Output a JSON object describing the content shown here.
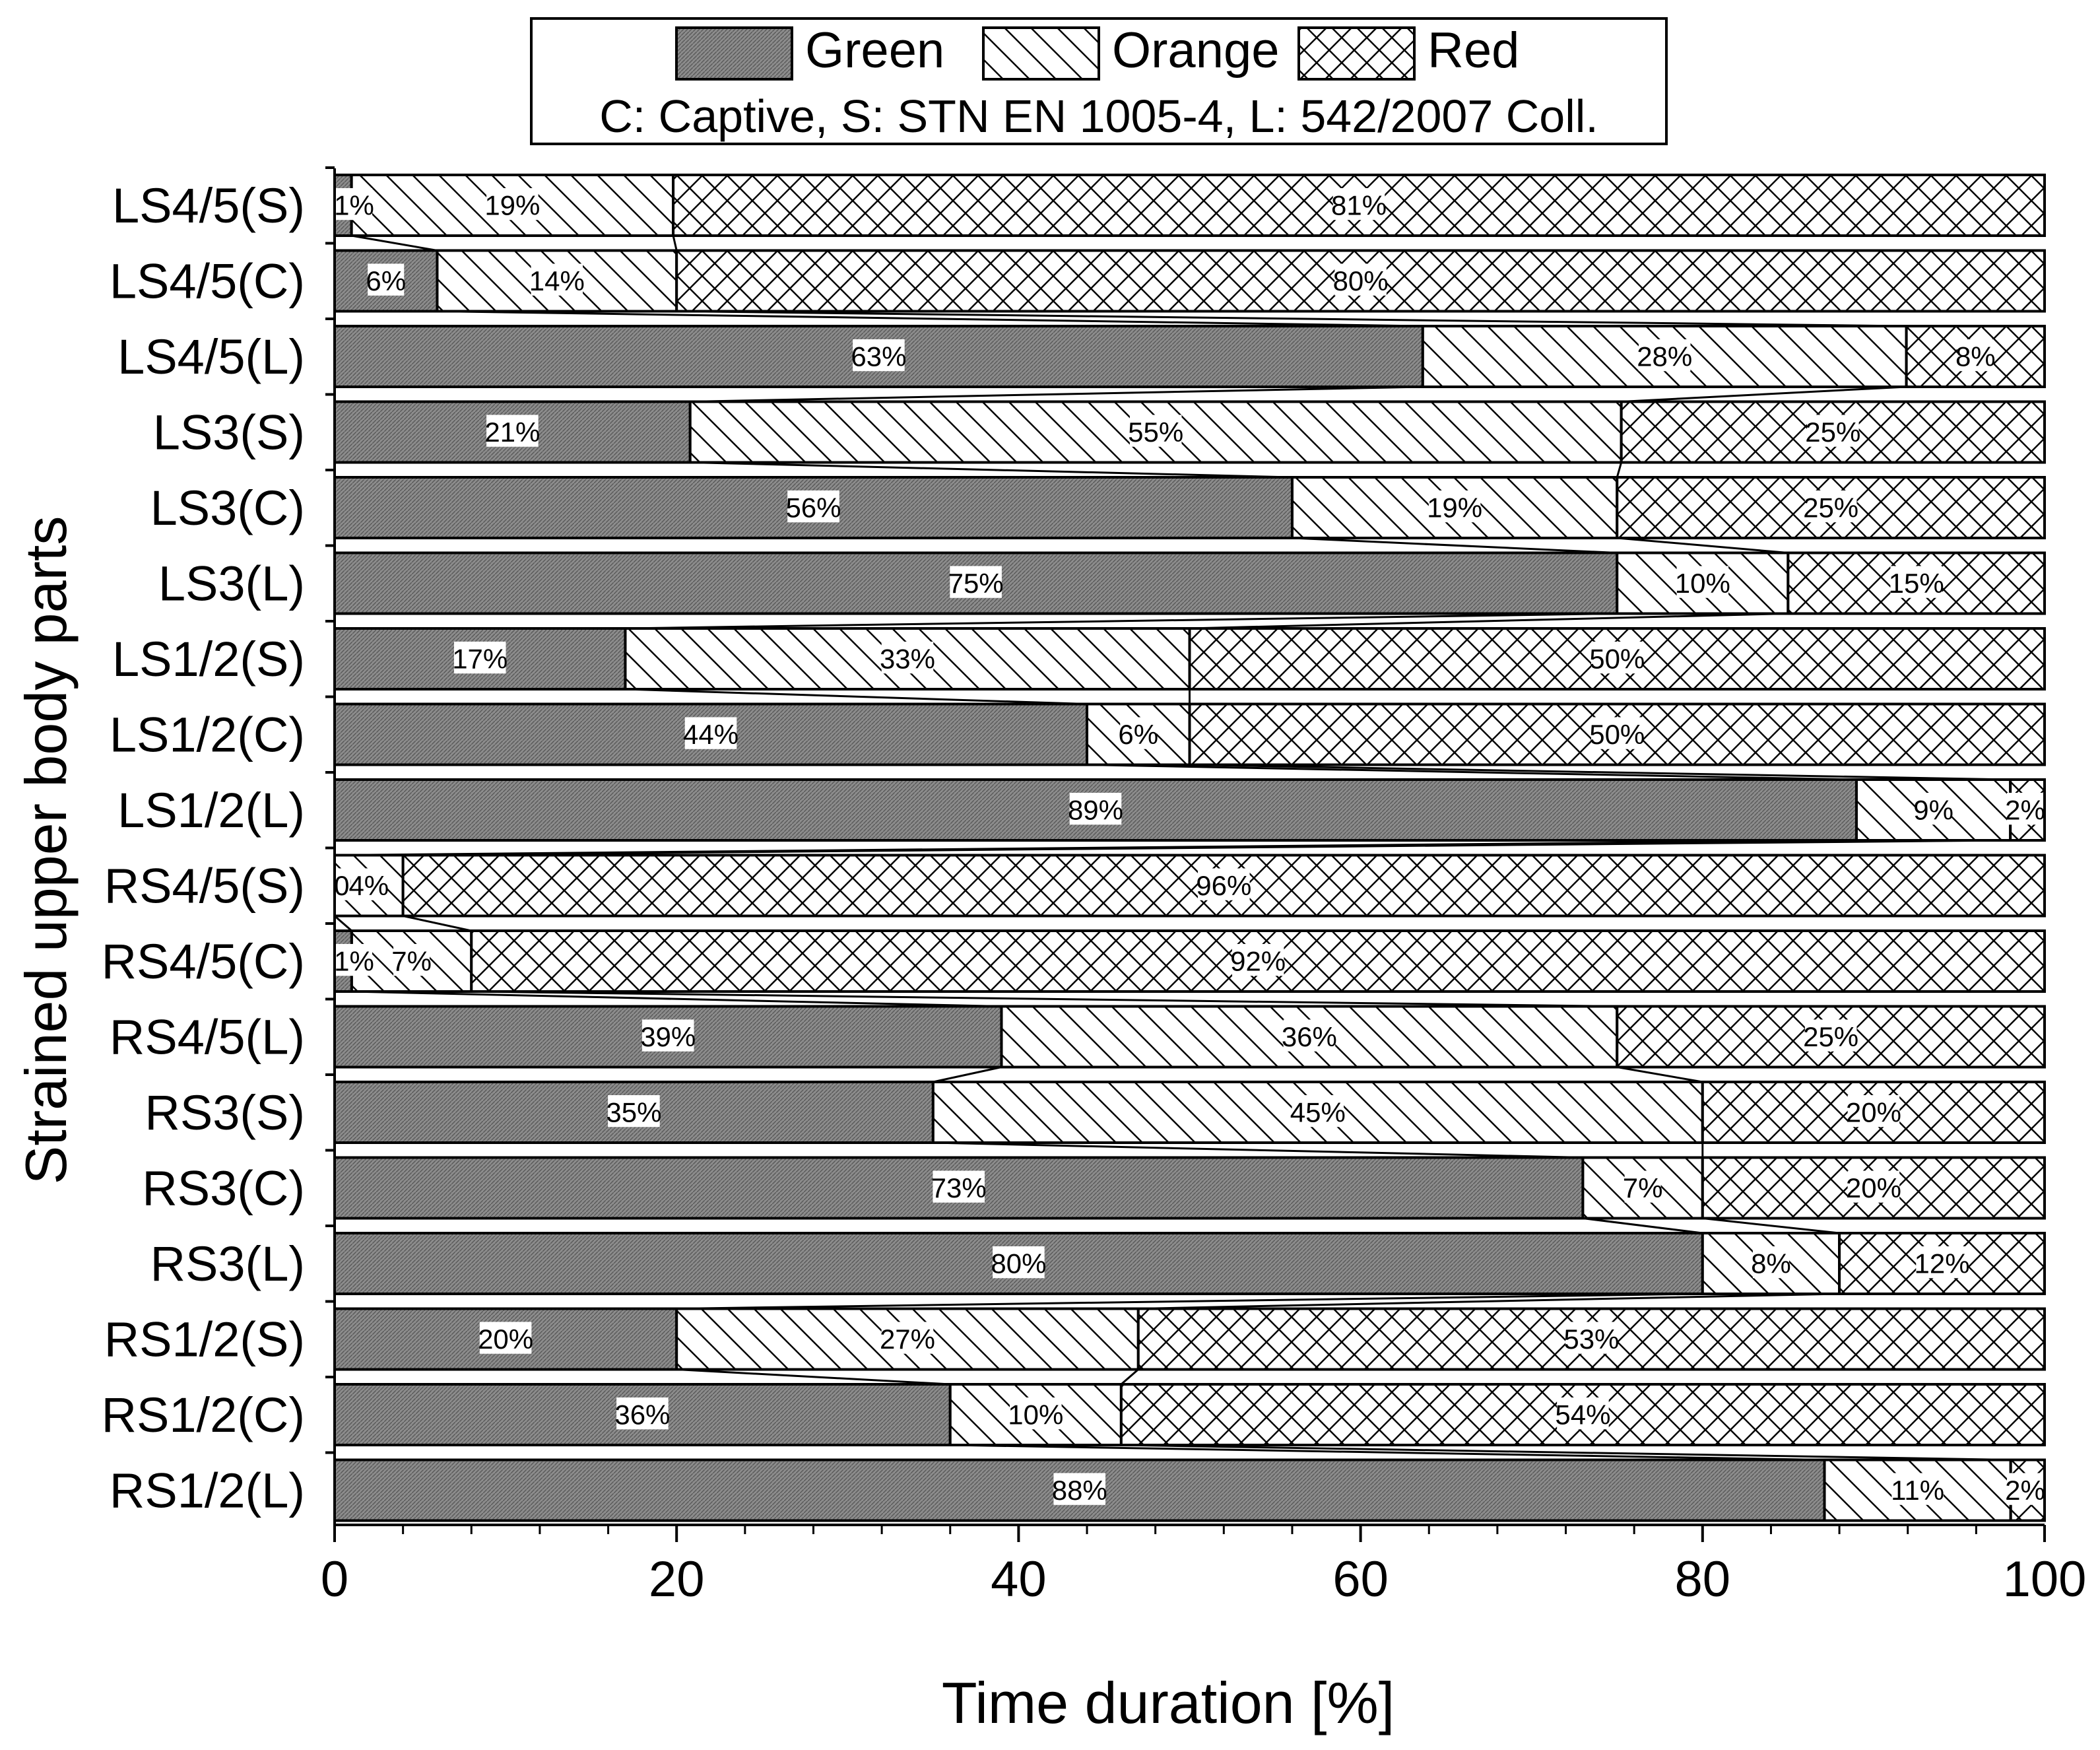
{
  "chart_data": {
    "type": "bar",
    "orientation": "horizontal",
    "stacked": true,
    "xlabel": "Time duration [%]",
    "ylabel": "Strained upper body parts",
    "xlim": [
      0,
      100
    ],
    "xticks": [
      0,
      20,
      40,
      60,
      80,
      100
    ],
    "legend": {
      "position": "top-center",
      "entries": [
        {
          "name": "Green",
          "pattern": "dense-gray"
        },
        {
          "name": "Orange",
          "pattern": "diagonal-hatch"
        },
        {
          "name": "Red",
          "pattern": "cross-hatch"
        }
      ],
      "note": "C: Captive, S: STN EN 1005-4, L: 542/2007 Coll."
    },
    "categories": [
      "LS4/5(S)",
      "LS4/5(C)",
      "LS4/5(L)",
      "LS3(S)",
      "LS3(C)",
      "LS3(L)",
      "LS1/2(S)",
      "LS1/2(C)",
      "LS1/2(L)",
      "RS4/5(S)",
      "RS4/5(C)",
      "RS4/5(L)",
      "RS3(S)",
      "RS3(C)",
      "RS3(L)",
      "RS1/2(S)",
      "RS1/2(C)",
      "RS1/2(L)"
    ],
    "series": [
      {
        "name": "Green",
        "values": [
          1,
          6,
          63,
          21,
          56,
          75,
          17,
          44,
          89,
          0,
          1,
          39,
          35,
          73,
          80,
          20,
          36,
          88
        ]
      },
      {
        "name": "Orange",
        "values": [
          19,
          14,
          28,
          55,
          19,
          10,
          33,
          6,
          9,
          4,
          7,
          36,
          45,
          7,
          8,
          27,
          10,
          11
        ]
      },
      {
        "name": "Red",
        "values": [
          81,
          80,
          8,
          25,
          25,
          15,
          50,
          50,
          2,
          96,
          92,
          25,
          20,
          20,
          12,
          53,
          54,
          2
        ]
      }
    ],
    "data_labels": [
      [
        "1%",
        "19%",
        "81%"
      ],
      [
        "6%",
        "14%",
        "80%"
      ],
      [
        "63%",
        "28%",
        "8%"
      ],
      [
        "21%",
        "55%",
        "25%"
      ],
      [
        "56%",
        "19%",
        "25%"
      ],
      [
        "75%",
        "10%",
        "15%"
      ],
      [
        "17%",
        "33%",
        "50%"
      ],
      [
        "44%",
        "6%",
        "50%"
      ],
      [
        "89%",
        "9%",
        "2%"
      ],
      [
        "0%",
        "4%",
        "96%"
      ],
      [
        "1%",
        "7%",
        "92%"
      ],
      [
        "39%",
        "36%",
        "25%"
      ],
      [
        "35%",
        "45%",
        "20%"
      ],
      [
        "73%",
        "7%",
        "20%"
      ],
      [
        "80%",
        "8%",
        "12%"
      ],
      [
        "20%",
        "27%",
        "53%"
      ],
      [
        "36%",
        "10%",
        "54%"
      ],
      [
        "88%",
        "11%",
        "2%"
      ]
    ],
    "connector_lines": true
  }
}
